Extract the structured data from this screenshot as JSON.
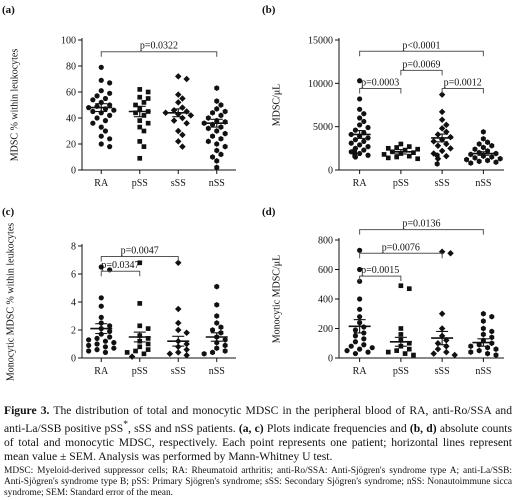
{
  "chart_data": [
    {
      "id": "a",
      "type": "scatter",
      "panel_label": "(a)",
      "ylabel": "MDSC % within leukocytes",
      "categories": [
        "RA",
        "pSS",
        "sSS",
        "nSS"
      ],
      "ylim": [
        0,
        100
      ],
      "yticks": [
        0,
        20,
        40,
        60,
        80,
        100
      ],
      "markers": [
        "circle",
        "square",
        "diamond",
        "hexagon"
      ],
      "means": [
        48,
        45,
        44,
        36
      ],
      "sem": [
        3,
        4,
        3,
        3
      ],
      "points": [
        [
          79,
          69,
          67,
          61,
          59,
          57,
          55,
          54,
          52,
          50,
          49,
          48,
          47,
          46,
          45,
          44,
          42,
          40,
          38,
          36,
          33,
          30,
          26,
          24,
          20,
          18
        ],
        [
          62,
          60,
          56,
          55,
          52,
          50,
          47,
          45,
          44,
          42,
          38,
          36,
          33,
          30,
          22,
          18,
          9
        ],
        [
          72,
          70,
          58,
          55,
          52,
          48,
          46,
          45,
          44,
          43,
          42,
          40,
          38,
          36,
          30,
          27,
          22,
          18
        ],
        [
          63,
          53,
          50,
          47,
          45,
          44,
          42,
          40,
          38,
          37,
          36,
          35,
          33,
          32,
          30,
          28,
          26,
          24,
          22,
          20,
          18,
          15,
          12,
          10,
          7,
          2
        ]
      ],
      "comparisons": [
        {
          "from": 0,
          "to": 3,
          "y": 91,
          "label": "p=0.0322"
        }
      ]
    },
    {
      "id": "b",
      "type": "scatter",
      "panel_label": "(b)",
      "ylabel": "MDSC/μL",
      "categories": [
        "RA",
        "pSS",
        "sSS",
        "nSS"
      ],
      "ylim": [
        0,
        15000
      ],
      "yticks": [
        0,
        5000,
        10000,
        15000
      ],
      "markers": [
        "circle",
        "square",
        "diamond",
        "hexagon"
      ],
      "means": [
        4100,
        2100,
        3700,
        1900
      ],
      "sem": [
        450,
        250,
        450,
        200
      ],
      "points": [
        [
          10300,
          8200,
          7000,
          6500,
          6000,
          5600,
          5200,
          4900,
          4600,
          4300,
          4100,
          3900,
          3700,
          3500,
          3300,
          3100,
          2900,
          2700,
          2500,
          2300,
          2100,
          1900,
          1700,
          1500
        ],
        [
          3000,
          2700,
          2600,
          2500,
          2400,
          2300,
          2200,
          2100,
          2000,
          1900,
          1800,
          1700,
          1600,
          1500,
          1400,
          1300
        ],
        [
          8700,
          6700,
          5800,
          5200,
          4800,
          4400,
          4100,
          3800,
          3500,
          3300,
          3000,
          2800,
          2500,
          2200,
          1900,
          1600,
          1300
        ],
        [
          4400,
          3600,
          3200,
          3000,
          2800,
          2600,
          2400,
          2200,
          2000,
          1900,
          1800,
          1700,
          1600,
          1500,
          1400,
          1300,
          1200,
          1100,
          1000,
          900,
          800,
          700
        ]
      ],
      "comparisons": [
        {
          "from": 0,
          "to": 3,
          "y": 13700,
          "label": "p<0.0001"
        },
        {
          "from": 1,
          "to": 2,
          "y": 11500,
          "label": "p=0.0069"
        },
        {
          "from": 0,
          "to": 1,
          "y": 9400,
          "label": "p=0.0003"
        },
        {
          "from": 2,
          "to": 3,
          "y": 9400,
          "label": "p=0.0012"
        }
      ]
    },
    {
      "id": "c",
      "type": "scatter",
      "panel_label": "(c)",
      "ylabel": "Monocytic MDSC % within leukocytes",
      "categories": [
        "RA",
        "pSS",
        "sSS",
        "nSS"
      ],
      "ylim": [
        0,
        8
      ],
      "yticks": [
        0,
        2,
        4,
        6,
        8
      ],
      "markers": [
        "circle",
        "square",
        "diamond",
        "hexagon"
      ],
      "means": [
        2.1,
        1.5,
        1.2,
        1.5
      ],
      "sem": [
        0.35,
        0.35,
        0.35,
        0.3
      ],
      "points": [
        [
          6.5,
          6.3,
          4.3,
          3.7,
          2.9,
          2.5,
          2.3,
          2.1,
          1.9,
          1.7,
          1.5,
          1.4,
          1.3,
          1.2,
          1.1,
          1.0,
          0.9,
          0.8,
          0.7,
          0.6,
          0.5,
          0.4
        ],
        [
          6.8,
          3.9,
          2.3,
          2.1,
          1.6,
          1.4,
          1.2,
          1.0,
          0.8,
          0.6,
          0.5,
          0.4,
          0.3
        ],
        [
          6.8,
          3.5,
          2.5,
          2.0,
          1.8,
          1.2,
          1.0,
          0.8,
          0.6,
          0.4,
          0.3,
          0.2,
          0.1
        ],
        [
          5.1,
          3.8,
          3.0,
          2.5,
          2.2,
          2.0,
          1.8,
          1.5,
          1.3,
          1.1,
          0.9,
          0.7,
          0.5,
          0.4,
          0.3
        ]
      ],
      "comparisons": [
        {
          "from": 0,
          "to": 2,
          "y": 7.25,
          "label": "p=0.0047"
        },
        {
          "from": 0,
          "to": 1,
          "y": 6.2,
          "label": "p=0.0347"
        }
      ]
    },
    {
      "id": "d",
      "type": "scatter",
      "panel_label": "(d)",
      "ylabel": "Monocytic MDSC/μL",
      "categories": [
        "RA",
        "pSS",
        "sSS",
        "nSS"
      ],
      "ylim": [
        0,
        800
      ],
      "yticks": [
        0,
        200,
        400,
        600,
        800
      ],
      "markers": [
        "circle",
        "square",
        "diamond",
        "hexagon"
      ],
      "means": [
        215,
        110,
        135,
        105
      ],
      "sem": [
        45,
        30,
        45,
        25
      ],
      "points": [
        [
          730,
          600,
          520,
          400,
          330,
          280,
          240,
          210,
          190,
          170,
          150,
          130,
          110,
          90,
          80,
          70,
          60,
          50,
          40,
          30
        ],
        [
          490,
          470,
          200,
          160,
          120,
          100,
          80,
          60,
          50,
          40,
          30,
          20
        ],
        [
          720,
          710,
          300,
          200,
          150,
          120,
          100,
          80,
          60,
          40,
          30,
          20
        ],
        [
          300,
          280,
          250,
          200,
          180,
          160,
          140,
          120,
          100,
          90,
          80,
          70,
          60,
          50,
          40,
          30,
          20
        ]
      ],
      "comparisons": [
        {
          "from": 0,
          "to": 3,
          "y": 870,
          "label": "p=0.0136"
        },
        {
          "from": 0,
          "to": 2,
          "y": 710,
          "label": "p=0.0076"
        },
        {
          "from": 0,
          "to": 1,
          "y": 555,
          "label": "p=0.0015"
        }
      ]
    }
  ],
  "caption": {
    "lead": "Figure 3.",
    "body_1": " The distribution of total and monocytic MDSC in the peripheral blood of RA, anti-Ro/SSA and anti-La/SSB positive pSS",
    "body_sup": "*",
    "body_2": ", sSS and nSS patients. ",
    "panels_ac": "(a, c)",
    "body_3": " Plots indicate frequencies and ",
    "panels_bd": "(b, d)",
    "body_4": " absolute counts of total and monocytic MDSC, respectively. Each point represents one patient; horizontal lines represent mean value ± SEM. Analysis was performed by Mann-Whitney U test.",
    "abbreviations": "MDSC: Myeloid-derived suppressor cells; RA: Rheumatoid arthritis; anti-Ro/SSA: Anti-Sjögren's syndrome type A; anti-La/SSB: Anti-Sjögren's syndrome type B; pSS: Primary Sjögren's syndrome; sSS: Secondary Sjögren's syndrome; nSS: Nonautoimmune sicca syndrome; SEM: Standard error of the mean."
  }
}
